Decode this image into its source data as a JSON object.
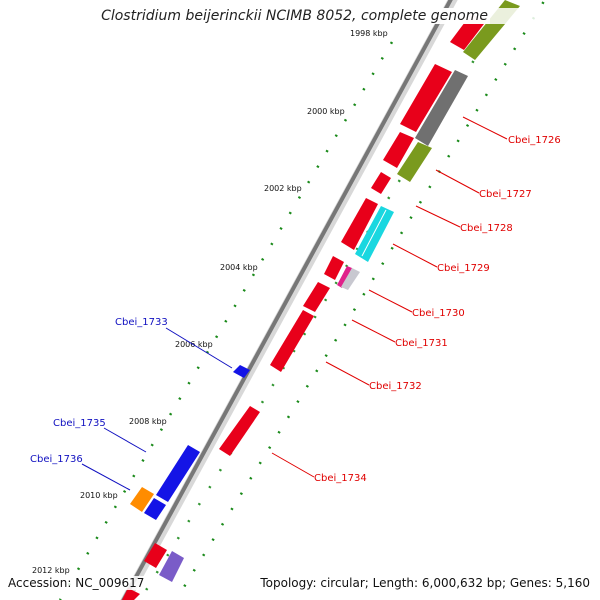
{
  "title": "Clostridium beijerinckii NCIMB 8052, complete genome",
  "footer": {
    "accession": "Accession: NC_009617",
    "summary": "Topology: circular; Length: 6,000,632 bp; Genes: 5,160"
  },
  "ticks": [
    "1998 kbp",
    "2000 kbp",
    "2002 kbp",
    "2004 kbp",
    "2006 kbp",
    "2008 kbp",
    "2010 kbp",
    "2012 kbp"
  ],
  "genes_right": [
    "Cbei_1726",
    "Cbei_1727",
    "Cbei_1728",
    "Cbei_1729",
    "Cbei_1730",
    "Cbei_1731",
    "Cbei_1732",
    "Cbei_1734"
  ],
  "genes_left": [
    "Cbei_1733",
    "Cbei_1735",
    "Cbei_1736"
  ],
  "colors": {
    "forward": "#e8001a",
    "reverse_blue": "#1414e6",
    "olive": "#7a9a1e",
    "gray": "#707070",
    "cyan": "#1ad7e0",
    "magenta": "#e0208a",
    "orange": "#ff8c00",
    "purple": "#7a5cc8",
    "label_red": "#e00000",
    "label_blue": "#1010c0",
    "dots": "#1a8a1a"
  }
}
